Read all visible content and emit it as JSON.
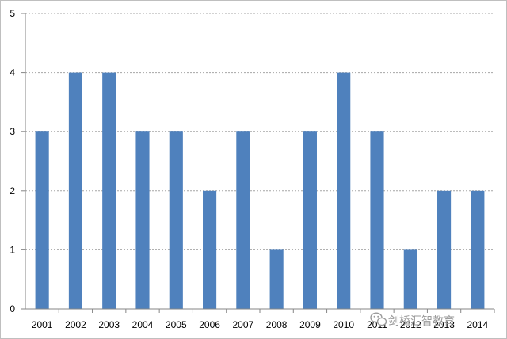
{
  "chart_data": {
    "type": "bar",
    "title": "",
    "xlabel": "",
    "ylabel": "",
    "categories": [
      "2001",
      "2002",
      "2003",
      "2004",
      "2005",
      "2006",
      "2007",
      "2008",
      "2009",
      "2010",
      "2011",
      "2012",
      "2013",
      "2014"
    ],
    "values": [
      3,
      4,
      4,
      3,
      3,
      2,
      3,
      1,
      3,
      4,
      3,
      1,
      2,
      2
    ],
    "ylim": [
      0,
      5
    ],
    "yticks": [
      "0",
      "1",
      "2",
      "3",
      "4",
      "5"
    ],
    "grid": true,
    "legend": "none",
    "colors": {
      "bar": "#4f81bd",
      "grid": "#a6a6a6",
      "axis": "#868686"
    }
  },
  "watermark": {
    "text": "剑桥汇智教育",
    "icon": "wechat-icon"
  }
}
